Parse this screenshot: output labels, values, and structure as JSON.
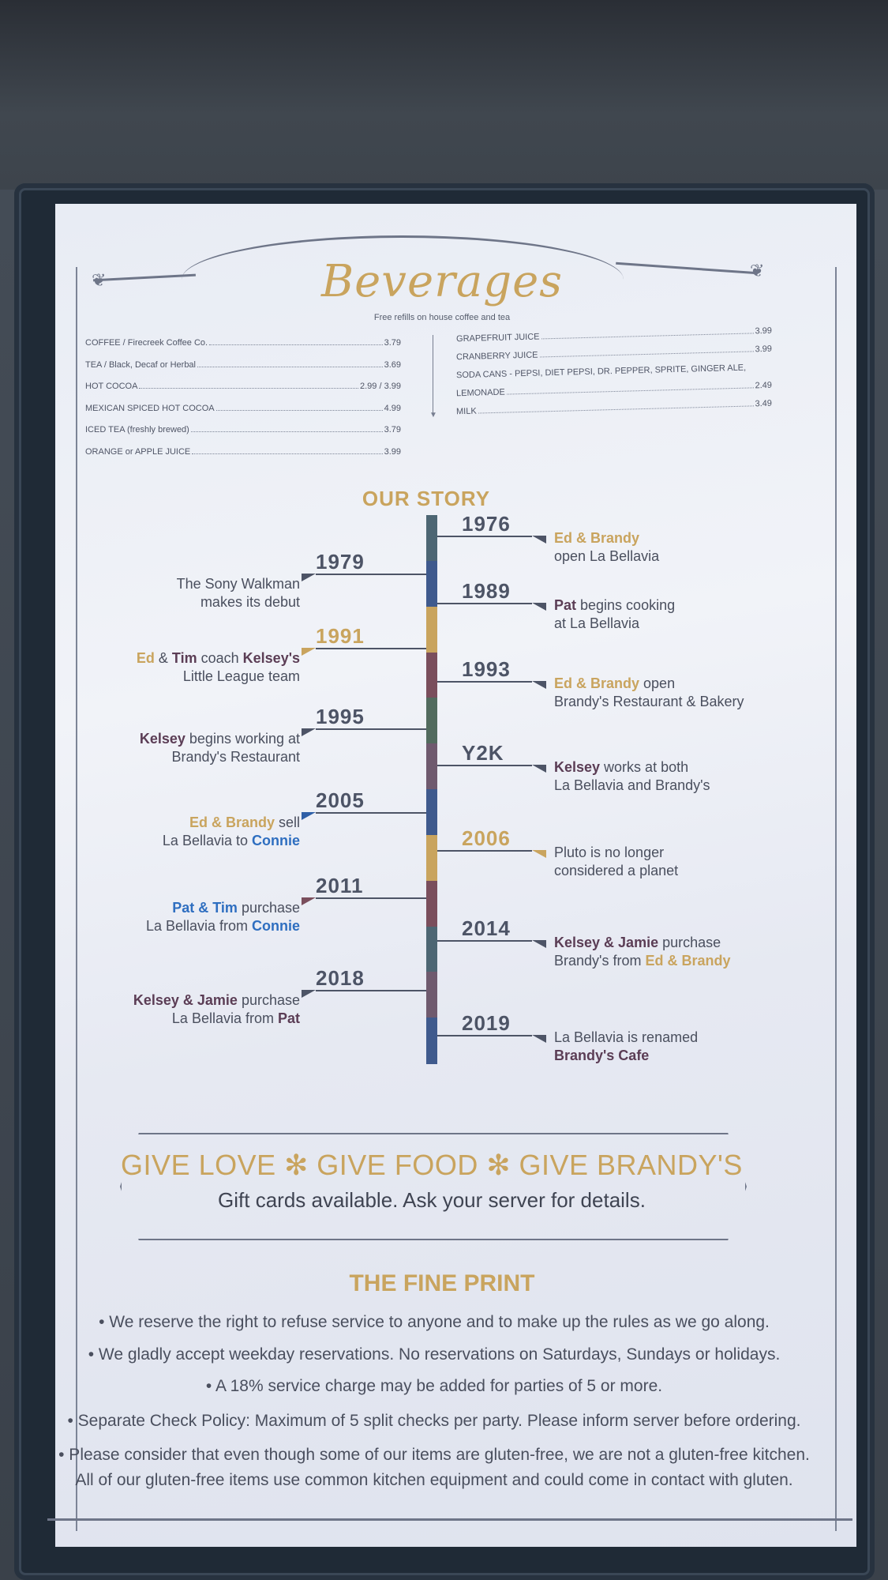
{
  "beverages": {
    "title": "Beverages",
    "subtitle": "Free refills on house coffee and tea",
    "left": [
      {
        "name": "COFFEE / Firecreek Coffee Co.",
        "price": "3.79"
      },
      {
        "name": "TEA / Black, Decaf or Herbal",
        "price": "3.69"
      },
      {
        "name": "HOT COCOA",
        "price": "2.99 / 3.99"
      },
      {
        "name": "MEXICAN SPICED HOT COCOA",
        "price": "4.99"
      },
      {
        "name": "ICED TEA (freshly brewed)",
        "price": "3.79"
      },
      {
        "name": "ORANGE or APPLE JUICE",
        "price": "3.99"
      }
    ],
    "right": [
      {
        "name": "GRAPEFRUIT JUICE",
        "price": "3.99"
      },
      {
        "name": "CRANBERRY JUICE",
        "price": "3.99"
      },
      {
        "name": "SODA CANS - PEPSI, DIET PEPSI, DR. PEPPER, SPRITE, GINGER ALE,",
        "price": ""
      },
      {
        "name": "LEMONADE",
        "price": "2.49"
      },
      {
        "name": "MILK",
        "price": "3.49"
      }
    ]
  },
  "story": {
    "title": "OUR STORY",
    "events": [
      {
        "year": "1976",
        "parts": [
          [
            "Ed & Brandy",
            "gold"
          ],
          [
            "\nopen La Bellavia",
            ""
          ]
        ]
      },
      {
        "year": "1979",
        "parts": [
          [
            "The Sony Walkman\nmakes its debut",
            ""
          ]
        ]
      },
      {
        "year": "1989",
        "parts": [
          [
            "Pat",
            "bold"
          ],
          [
            " begins cooking\nat La Bellavia",
            ""
          ]
        ]
      },
      {
        "year": "1991",
        "parts": [
          [
            "Ed",
            "gold"
          ],
          [
            " & ",
            ""
          ],
          [
            "Tim",
            "bold"
          ],
          [
            " coach ",
            ""
          ],
          [
            "Kelsey's",
            "bold"
          ],
          [
            "\nLittle League team",
            ""
          ]
        ]
      },
      {
        "year": "1993",
        "parts": [
          [
            "Ed & Brandy",
            "gold"
          ],
          [
            " open\nBrandy's Restaurant & Bakery",
            ""
          ]
        ]
      },
      {
        "year": "1995",
        "parts": [
          [
            "Kelsey",
            "bold"
          ],
          [
            " begins working at\nBrandy's Restaurant",
            ""
          ]
        ]
      },
      {
        "year": "Y2K",
        "parts": [
          [
            "Kelsey",
            "bold"
          ],
          [
            " works at both\nLa Bellavia and Brandy's",
            ""
          ]
        ]
      },
      {
        "year": "2005",
        "parts": [
          [
            "Ed & Brandy",
            "gold"
          ],
          [
            " sell\nLa Bellavia to ",
            ""
          ],
          [
            "Connie",
            "blue"
          ]
        ]
      },
      {
        "year": "2006",
        "parts": [
          [
            "Pluto is no longer\nconsidered a planet",
            ""
          ]
        ]
      },
      {
        "year": "2011",
        "parts": [
          [
            "Pat & Tim",
            "blue"
          ],
          [
            " purchase\nLa Bellavia from ",
            ""
          ],
          [
            "Connie",
            "blue"
          ]
        ]
      },
      {
        "year": "2014",
        "parts": [
          [
            "Kelsey & Jamie",
            "bold"
          ],
          [
            " purchase\nBrandy's from ",
            ""
          ],
          [
            "Ed & Brandy",
            "gold"
          ]
        ]
      },
      {
        "year": "2018",
        "parts": [
          [
            "Kelsey & Jamie",
            "bold"
          ],
          [
            " purchase\nLa Bellavia from ",
            ""
          ],
          [
            "Pat",
            "bold"
          ]
        ]
      },
      {
        "year": "2019",
        "parts": [
          [
            "La Bellavia is renamed\n",
            ""
          ],
          [
            "Brandy's Cafe",
            "bold"
          ]
        ]
      }
    ]
  },
  "gift": {
    "headline": "GIVE LOVE ✻ GIVE FOOD ✻ GIVE BRANDY'S",
    "subline": "Gift cards available. Ask your server for details."
  },
  "fine_print": {
    "title": "THE FINE PRINT",
    "items": [
      "• We reserve the right to refuse service to anyone and to make up the rules as we go along.",
      "• We gladly accept weekday reservations. No reservations on Saturdays, Sundays or holidays.",
      "• A 18% service charge may be added for parties of 5 or more.",
      "• Separate Check Policy: Maximum of 5 split checks per party. Please inform server before ordering.",
      "• Please consider that even though some of our items are gluten-free, we are not a gluten-free kitchen.",
      "All of our gluten-free items use common kitchen equipment and could come in contact with gluten."
    ]
  },
  "colors": {
    "gold": "#c9a45e",
    "slate": "#4d5466",
    "blue": "#2e6ec0",
    "maroon": "#7a4e5c"
  }
}
